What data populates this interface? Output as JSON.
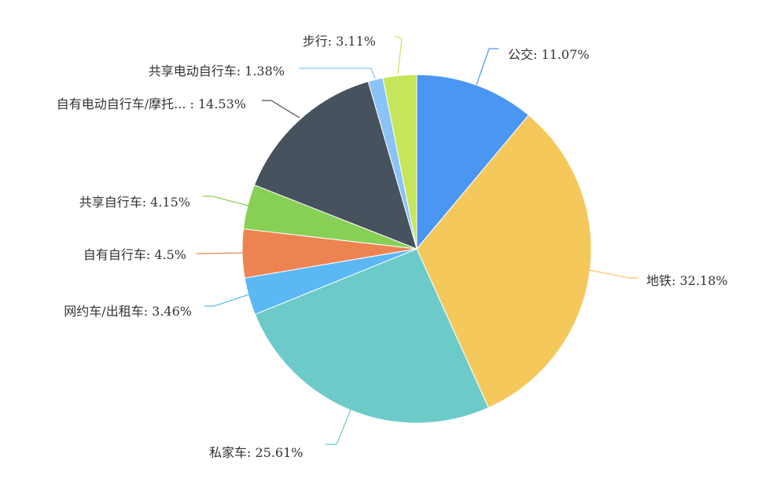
{
  "chart_data": {
    "type": "pie",
    "start": "12 o'clock",
    "direction": "clockwise",
    "legend": "none",
    "slices": [
      {
        "label": "公交",
        "value": 11.07,
        "text": "公交: 11.07%",
        "color": "#4b96f3"
      },
      {
        "label": "地铁",
        "value": 32.18,
        "text": "地铁: 32.18%",
        "color": "#f5c85c"
      },
      {
        "label": "私家车",
        "value": 25.61,
        "text": "私家车: 25.61%",
        "color": "#6ccbc9"
      },
      {
        "label": "网约车/出租车",
        "value": 3.46,
        "text": "网约车/出租车: 3.46%",
        "color": "#5bb8f5"
      },
      {
        "label": "自有自行车",
        "value": 4.5,
        "text": "自有自行车: 4.5%",
        "color": "#ee8352"
      },
      {
        "label": "共享自行车",
        "value": 4.15,
        "text": "共享自行车: 4.15%",
        "color": "#88cf56"
      },
      {
        "label": "自有电动自行车/摩托...",
        "value": 14.53,
        "text": "自有电动自行车/摩托... : 14.53%",
        "color": "#46525e"
      },
      {
        "label": "共享电动自行车",
        "value": 1.38,
        "text": "共享电动自行车: 1.38%",
        "color": "#8cc3f6"
      },
      {
        "label": "步行",
        "value": 3.11,
        "text": "步行: 3.11%",
        "color": "#c5e55b"
      }
    ]
  }
}
